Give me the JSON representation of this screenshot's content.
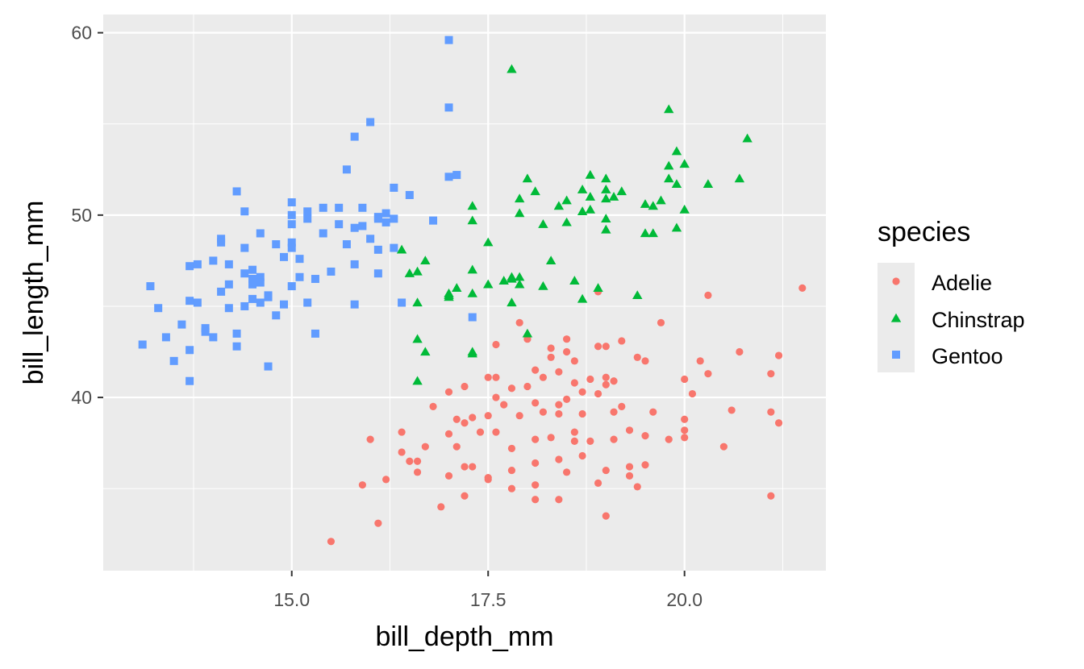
{
  "chart_data": {
    "type": "scatter",
    "title": "",
    "xlabel": "bill_depth_mm",
    "ylabel": "bill_length_mm",
    "xlim": [
      12.6,
      21.8
    ],
    "ylim": [
      30.5,
      61
    ],
    "x_ticks": [
      15.0,
      17.5,
      20.0
    ],
    "x_tick_labels": [
      "15.0",
      "17.5",
      "20.0"
    ],
    "y_ticks": [
      40,
      50,
      60
    ],
    "y_tick_labels": [
      "40",
      "50",
      "60"
    ],
    "grid": true,
    "legend": {
      "title": "species",
      "position": "right"
    },
    "series": [
      {
        "name": "Adelie",
        "color": "#F8766D",
        "marker": "circle",
        "points": [
          [
            15.5,
            32.1
          ],
          [
            16.1,
            33.1
          ],
          [
            17.2,
            34.6
          ],
          [
            16.9,
            34.0
          ],
          [
            18.1,
            34.4
          ],
          [
            18.4,
            34.4
          ],
          [
            19.0,
            33.5
          ],
          [
            21.1,
            34.6
          ],
          [
            15.9,
            35.2
          ],
          [
            16.2,
            35.5
          ],
          [
            17.8,
            35.0
          ],
          [
            18.1,
            35.2
          ],
          [
            18.9,
            35.3
          ],
          [
            19.4,
            35.1
          ],
          [
            16.5,
            36.5
          ],
          [
            16.6,
            35.9
          ],
          [
            17.0,
            35.7
          ],
          [
            17.2,
            36.2
          ],
          [
            17.3,
            36.2
          ],
          [
            17.5,
            35.6
          ],
          [
            17.5,
            35.5
          ],
          [
            17.8,
            36.0
          ],
          [
            18.1,
            36.4
          ],
          [
            18.4,
            36.6
          ],
          [
            18.5,
            35.9
          ],
          [
            18.7,
            36.8
          ],
          [
            19.0,
            36.0
          ],
          [
            19.3,
            36.2
          ],
          [
            19.5,
            36.3
          ],
          [
            19.3,
            35.7
          ],
          [
            16.0,
            37.7
          ],
          [
            16.4,
            37.0
          ],
          [
            16.7,
            37.3
          ],
          [
            17.1,
            37.3
          ],
          [
            17.2,
            38.6
          ],
          [
            17.4,
            38.1
          ],
          [
            17.6,
            38.1
          ],
          [
            17.8,
            37.2
          ],
          [
            18.1,
            37.7
          ],
          [
            18.3,
            37.8
          ],
          [
            18.6,
            38.1
          ],
          [
            18.6,
            37.6
          ],
          [
            18.8,
            37.6
          ],
          [
            19.1,
            37.7
          ],
          [
            19.3,
            38.2
          ],
          [
            19.5,
            37.9
          ],
          [
            19.8,
            37.7
          ],
          [
            20.0,
            38.2
          ],
          [
            20.0,
            37.8
          ],
          [
            20.5,
            37.3
          ],
          [
            16.4,
            38.1
          ],
          [
            16.6,
            36.5
          ],
          [
            17.0,
            38.0
          ],
          [
            17.1,
            38.8
          ],
          [
            17.3,
            38.9
          ],
          [
            17.5,
            39.0
          ],
          [
            17.7,
            39.6
          ],
          [
            17.9,
            39.0
          ],
          [
            18.1,
            39.7
          ],
          [
            18.2,
            39.2
          ],
          [
            18.4,
            39.6
          ],
          [
            18.5,
            39.9
          ],
          [
            18.7,
            39.1
          ],
          [
            18.9,
            40.2
          ],
          [
            19.1,
            39.2
          ],
          [
            19.6,
            39.2
          ],
          [
            20.0,
            38.8
          ],
          [
            20.6,
            39.3
          ],
          [
            21.1,
            39.2
          ],
          [
            21.2,
            38.6
          ],
          [
            16.8,
            39.5
          ],
          [
            17.0,
            40.3
          ],
          [
            17.2,
            40.6
          ],
          [
            17.6,
            40.0
          ],
          [
            17.8,
            40.5
          ],
          [
            18.0,
            40.6
          ],
          [
            18.2,
            41.1
          ],
          [
            18.4,
            41.4
          ],
          [
            18.6,
            40.8
          ],
          [
            18.8,
            41.0
          ],
          [
            19.0,
            41.1
          ],
          [
            19.1,
            40.9
          ],
          [
            20.1,
            40.2
          ],
          [
            20.0,
            41.0
          ],
          [
            17.5,
            41.1
          ],
          [
            17.6,
            41.1
          ],
          [
            18.1,
            41.5
          ],
          [
            18.3,
            42.2
          ],
          [
            18.5,
            42.5
          ],
          [
            18.6,
            42.0
          ],
          [
            19.4,
            42.2
          ],
          [
            19.5,
            42.0
          ],
          [
            20.2,
            42.0
          ],
          [
            20.3,
            41.3
          ],
          [
            20.7,
            42.5
          ],
          [
            21.1,
            41.3
          ],
          [
            21.2,
            42.3
          ],
          [
            18.0,
            43.2
          ],
          [
            18.3,
            42.7
          ],
          [
            18.5,
            43.2
          ],
          [
            18.9,
            42.8
          ],
          [
            19.0,
            42.8
          ],
          [
            19.2,
            43.1
          ],
          [
            19.7,
            44.1
          ],
          [
            17.9,
            44.1
          ],
          [
            17.6,
            42.9
          ],
          [
            18.9,
            45.8
          ],
          [
            20.3,
            45.6
          ],
          [
            21.5,
            46.0
          ],
          [
            19.0,
            40.7
          ],
          [
            18.7,
            40.3
          ],
          [
            18.4,
            39.1
          ],
          [
            19.2,
            39.5
          ]
        ]
      },
      {
        "name": "Chinstrap",
        "color": "#00BA38",
        "marker": "triangle",
        "points": [
          [
            16.6,
            40.9
          ],
          [
            16.7,
            42.5
          ],
          [
            16.6,
            43.2
          ],
          [
            17.3,
            42.4
          ],
          [
            17.3,
            42.5
          ],
          [
            17.7,
            46.4
          ],
          [
            17.8,
            46.6
          ],
          [
            17.8,
            45.2
          ],
          [
            17.9,
            46.6
          ],
          [
            18.0,
            43.5
          ],
          [
            18.2,
            46.1
          ],
          [
            18.6,
            46.4
          ],
          [
            18.7,
            45.4
          ],
          [
            18.9,
            46.0
          ],
          [
            19.4,
            45.6
          ],
          [
            17.0,
            45.7
          ],
          [
            17.0,
            45.5
          ],
          [
            17.1,
            46.0
          ],
          [
            17.3,
            45.7
          ],
          [
            17.3,
            47.0
          ],
          [
            17.5,
            46.2
          ],
          [
            17.5,
            48.5
          ],
          [
            17.9,
            46.2
          ],
          [
            18.0,
            52.0
          ],
          [
            16.5,
            46.8
          ],
          [
            16.6,
            46.9
          ],
          [
            16.4,
            48.1
          ],
          [
            16.7,
            47.5
          ],
          [
            16.6,
            45.2
          ],
          [
            17.3,
            49.7
          ],
          [
            17.3,
            50.5
          ],
          [
            17.8,
            58.0
          ],
          [
            17.9,
            50.9
          ],
          [
            17.9,
            50.1
          ],
          [
            18.1,
            51.3
          ],
          [
            18.2,
            49.5
          ],
          [
            18.4,
            50.5
          ],
          [
            18.5,
            50.8
          ],
          [
            18.7,
            51.4
          ],
          [
            18.7,
            50.2
          ],
          [
            18.8,
            52.2
          ],
          [
            18.8,
            50.3
          ],
          [
            18.8,
            51.0
          ],
          [
            19.0,
            52.0
          ],
          [
            19.0,
            51.4
          ],
          [
            19.0,
            50.9
          ],
          [
            19.0,
            49.8
          ],
          [
            19.1,
            51.0
          ],
          [
            19.2,
            51.3
          ],
          [
            19.5,
            50.6
          ],
          [
            19.5,
            49.0
          ],
          [
            19.6,
            49.0
          ],
          [
            19.6,
            50.5
          ],
          [
            19.7,
            50.8
          ],
          [
            19.8,
            52.0
          ],
          [
            19.8,
            52.7
          ],
          [
            19.9,
            53.5
          ],
          [
            20.0,
            52.8
          ],
          [
            19.9,
            51.7
          ],
          [
            19.8,
            55.8
          ],
          [
            20.0,
            50.3
          ],
          [
            19.9,
            49.3
          ],
          [
            20.3,
            51.7
          ],
          [
            20.7,
            52.0
          ],
          [
            20.8,
            54.2
          ],
          [
            17.0,
            45.6
          ],
          [
            17.8,
            46.5
          ],
          [
            18.3,
            47.5
          ],
          [
            18.5,
            49.6
          ],
          [
            19.0,
            49.2
          ]
        ]
      },
      {
        "name": "Gentoo",
        "color": "#619CFF",
        "marker": "square",
        "points": [
          [
            13.1,
            42.9
          ],
          [
            13.2,
            46.1
          ],
          [
            13.3,
            44.9
          ],
          [
            13.4,
            43.3
          ],
          [
            13.5,
            42.0
          ],
          [
            13.6,
            44.0
          ],
          [
            13.7,
            40.9
          ],
          [
            13.7,
            42.6
          ],
          [
            13.7,
            45.3
          ],
          [
            13.7,
            47.2
          ],
          [
            13.8,
            47.3
          ],
          [
            13.8,
            45.2
          ],
          [
            13.9,
            43.8
          ],
          [
            13.9,
            43.6
          ],
          [
            14.0,
            43.3
          ],
          [
            14.0,
            47.5
          ],
          [
            14.1,
            45.8
          ],
          [
            14.1,
            48.7
          ],
          [
            14.1,
            48.5
          ],
          [
            14.2,
            46.2
          ],
          [
            14.2,
            47.3
          ],
          [
            14.3,
            51.3
          ],
          [
            14.3,
            43.5
          ],
          [
            14.3,
            42.8
          ],
          [
            14.4,
            45.0
          ],
          [
            14.4,
            46.8
          ],
          [
            14.4,
            50.2
          ],
          [
            14.4,
            48.2
          ],
          [
            14.5,
            47.0
          ],
          [
            14.5,
            46.5
          ],
          [
            14.5,
            46.2
          ],
          [
            14.5,
            45.4
          ],
          [
            14.6,
            46.6
          ],
          [
            14.6,
            45.2
          ],
          [
            14.6,
            49.0
          ],
          [
            14.6,
            46.3
          ],
          [
            14.7,
            45.5
          ],
          [
            14.7,
            45.6
          ],
          [
            14.7,
            41.7
          ],
          [
            14.8,
            44.5
          ],
          [
            14.8,
            48.4
          ],
          [
            14.9,
            45.1
          ],
          [
            14.9,
            47.7
          ],
          [
            15.0,
            46.1
          ],
          [
            15.0,
            48.5
          ],
          [
            15.0,
            50.0
          ],
          [
            15.0,
            49.5
          ],
          [
            15.0,
            50.7
          ],
          [
            15.1,
            46.6
          ],
          [
            15.1,
            47.6
          ],
          [
            15.2,
            50.2
          ],
          [
            15.2,
            45.2
          ],
          [
            15.3,
            43.5
          ],
          [
            15.3,
            46.5
          ],
          [
            15.4,
            49.0
          ],
          [
            15.4,
            50.4
          ],
          [
            15.5,
            46.9
          ],
          [
            15.6,
            50.4
          ],
          [
            15.7,
            52.5
          ],
          [
            15.7,
            48.4
          ],
          [
            15.8,
            45.1
          ],
          [
            15.8,
            49.3
          ],
          [
            15.8,
            54.3
          ],
          [
            15.9,
            49.4
          ],
          [
            15.9,
            50.4
          ],
          [
            16.0,
            55.1
          ],
          [
            16.0,
            48.7
          ],
          [
            16.1,
            48.1
          ],
          [
            16.1,
            49.8
          ],
          [
            16.1,
            46.8
          ],
          [
            16.2,
            49.6
          ],
          [
            16.3,
            51.5
          ],
          [
            16.3,
            49.8
          ],
          [
            16.4,
            45.2
          ],
          [
            16.5,
            51.1
          ],
          [
            16.8,
            49.7
          ],
          [
            17.0,
            52.1
          ],
          [
            17.0,
            55.9
          ],
          [
            17.0,
            59.6
          ],
          [
            17.1,
            52.2
          ],
          [
            17.3,
            44.4
          ],
          [
            14.2,
            44.9
          ],
          [
            15.0,
            48.2
          ],
          [
            15.2,
            49.8
          ],
          [
            15.6,
            49.5
          ],
          [
            15.8,
            47.3
          ],
          [
            16.1,
            49.9
          ],
          [
            16.2,
            50.1
          ],
          [
            16.3,
            48.2
          ]
        ]
      }
    ]
  }
}
